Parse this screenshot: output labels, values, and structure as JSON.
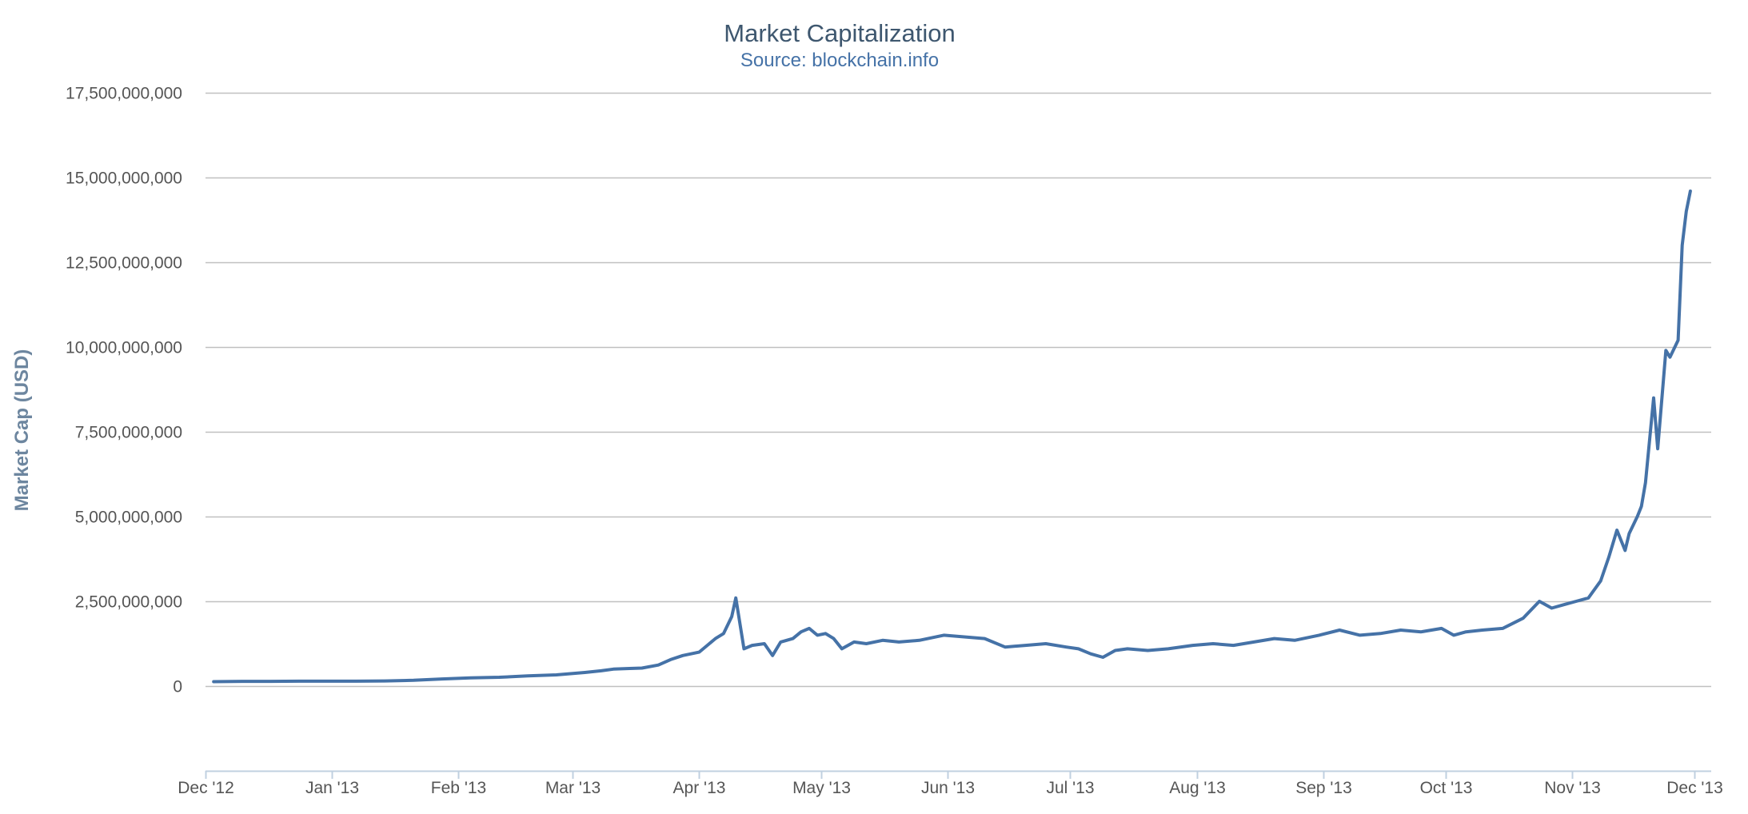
{
  "colors": {
    "series": "#4572A7",
    "grid": "#C0C0C0",
    "axis": "#C0D0E0",
    "title": "#3E576F",
    "subtitle": "#4572A7",
    "ylabel": "#6D869F"
  },
  "chart_data": {
    "type": "line",
    "title": "Market Capitalization",
    "subtitle": "Source: blockchain.info",
    "xlabel": "",
    "ylabel": "Market Cap (USD)",
    "grid": true,
    "legend": "none",
    "ylim": [
      -2500000000,
      17500000000
    ],
    "y_ticks": [
      0,
      2500000000,
      5000000000,
      7500000000,
      10000000000,
      12500000000,
      15000000000,
      17500000000
    ],
    "y_tick_labels": [
      "0",
      "2,500,000,000",
      "5,000,000,000",
      "7,500,000,000",
      "10,000,000,000",
      "12,500,000,000",
      "15,000,000,000",
      "17,500,000,000"
    ],
    "x_ticks": [
      "2012-12-01",
      "2013-01-01",
      "2013-02-01",
      "2013-03-01",
      "2013-04-01",
      "2013-05-01",
      "2013-06-01",
      "2013-07-01",
      "2013-08-01",
      "2013-09-01",
      "2013-10-01",
      "2013-11-01",
      "2013-12-01"
    ],
    "x_tick_labels": [
      "Dec '12",
      "Jan '13",
      "Feb '13",
      "Mar '13",
      "Apr '13",
      "May '13",
      "Jun '13",
      "Jul '13",
      "Aug '13",
      "Sep '13",
      "Oct '13",
      "Nov '13",
      "Dec '13"
    ],
    "xlim": [
      "2012-12-01",
      "2013-12-01"
    ],
    "series": [
      {
        "x": [
          "2012-12-03",
          "2012-12-10",
          "2012-12-17",
          "2012-12-24",
          "2012-12-31",
          "2013-01-07",
          "2013-01-14",
          "2013-01-21",
          "2013-01-28",
          "2013-02-04",
          "2013-02-11",
          "2013-02-18",
          "2013-02-25",
          "2013-03-04",
          "2013-03-08",
          "2013-03-11",
          "2013-03-15",
          "2013-03-18",
          "2013-03-22",
          "2013-03-25",
          "2013-03-28",
          "2013-04-01",
          "2013-04-03",
          "2013-04-05",
          "2013-04-07",
          "2013-04-09",
          "2013-04-10",
          "2013-04-12",
          "2013-04-14",
          "2013-04-17",
          "2013-04-19",
          "2013-04-21",
          "2013-04-24",
          "2013-04-26",
          "2013-04-28",
          "2013-04-30",
          "2013-05-02",
          "2013-05-04",
          "2013-05-06",
          "2013-05-09",
          "2013-05-12",
          "2013-05-16",
          "2013-05-20",
          "2013-05-25",
          "2013-05-31",
          "2013-06-05",
          "2013-06-10",
          "2013-06-15",
          "2013-06-20",
          "2013-06-25",
          "2013-06-30",
          "2013-07-03",
          "2013-07-06",
          "2013-07-09",
          "2013-07-12",
          "2013-07-15",
          "2013-07-20",
          "2013-07-25",
          "2013-07-31",
          "2013-08-05",
          "2013-08-10",
          "2013-08-15",
          "2013-08-20",
          "2013-08-25",
          "2013-08-31",
          "2013-09-05",
          "2013-09-10",
          "2013-09-15",
          "2013-09-20",
          "2013-09-25",
          "2013-09-30",
          "2013-10-03",
          "2013-10-06",
          "2013-10-10",
          "2013-10-15",
          "2013-10-20",
          "2013-10-24",
          "2013-10-27",
          "2013-10-30",
          "2013-11-02",
          "2013-11-05",
          "2013-11-08",
          "2013-11-10",
          "2013-11-12",
          "2013-11-14",
          "2013-11-15",
          "2013-11-17",
          "2013-11-18",
          "2013-11-19",
          "2013-11-21",
          "2013-11-22",
          "2013-11-24",
          "2013-11-25",
          "2013-11-27",
          "2013-11-28",
          "2013-11-29",
          "2013-11-30"
        ],
        "values": [
          130000000,
          140000000,
          140000000,
          145000000,
          145000000,
          145000000,
          150000000,
          170000000,
          210000000,
          240000000,
          260000000,
          300000000,
          330000000,
          400000000,
          450000000,
          500000000,
          520000000,
          530000000,
          620000000,
          780000000,
          900000000,
          1000000000,
          1200000000,
          1400000000,
          1550000000,
          2050000000,
          2600000000,
          1100000000,
          1200000000,
          1250000000,
          900000000,
          1300000000,
          1400000000,
          1600000000,
          1700000000,
          1500000000,
          1550000000,
          1400000000,
          1100000000,
          1300000000,
          1250000000,
          1350000000,
          1300000000,
          1350000000,
          1500000000,
          1450000000,
          1400000000,
          1150000000,
          1200000000,
          1250000000,
          1150000000,
          1100000000,
          950000000,
          850000000,
          1050000000,
          1100000000,
          1050000000,
          1100000000,
          1200000000,
          1250000000,
          1200000000,
          1300000000,
          1400000000,
          1350000000,
          1500000000,
          1650000000,
          1500000000,
          1550000000,
          1650000000,
          1600000000,
          1700000000,
          1500000000,
          1600000000,
          1650000000,
          1700000000,
          2000000000,
          2500000000,
          2300000000,
          2400000000,
          2500000000,
          2600000000,
          3100000000,
          3800000000,
          4600000000,
          4000000000,
          4500000000,
          5000000000,
          5300000000,
          6000000000,
          8500000000,
          7000000000,
          9900000000,
          9700000000,
          10200000000,
          13000000000,
          14000000000,
          14600000000
        ]
      }
    ]
  }
}
